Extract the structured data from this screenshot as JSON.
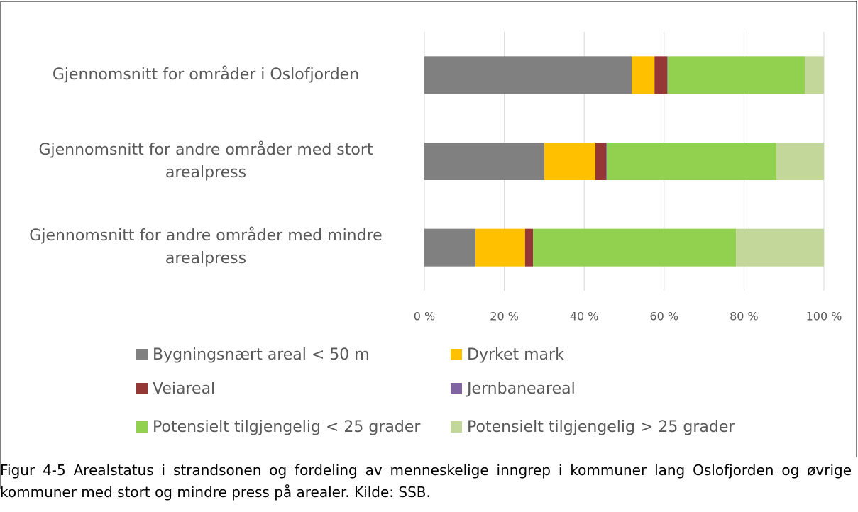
{
  "chart_data": {
    "type": "stacked-barh",
    "categories": [
      "Gjennomsnitt for områder i Oslofjorden",
      "Gjennomsnitt for andre områder med stort arealpress",
      "Gjennomsnitt for andre områder med mindre arealpress"
    ],
    "series": [
      {
        "name": "Bygningsnært areal < 50 m",
        "color": "#808080",
        "values": [
          51.9,
          30.0,
          12.8
        ]
      },
      {
        "name": "Dyrket mark",
        "color": "#ffc000",
        "values": [
          5.7,
          12.8,
          12.4
        ]
      },
      {
        "name": "Veiareal",
        "color": "#953735",
        "values": [
          3.2,
          2.7,
          2.0
        ]
      },
      {
        "name": "Jernbaneareal",
        "color": "#8064a2",
        "values": [
          0.1,
          0.2,
          0.0
        ]
      },
      {
        "name": "Potensielt tilgjengelig < 25 grader",
        "color": "#92d050",
        "values": [
          34.3,
          42.4,
          50.8
        ]
      },
      {
        "name": "Potensielt tilgjengelig > 25 grader",
        "color": "#c4d79b",
        "values": [
          4.8,
          11.9,
          22.0
        ]
      }
    ],
    "xlim": [
      0,
      100
    ],
    "xticks": [
      {
        "value": 0,
        "label": "0 %"
      },
      {
        "value": 20,
        "label": "20 %"
      },
      {
        "value": 40,
        "label": "40 %"
      },
      {
        "value": 60,
        "label": "60 %"
      },
      {
        "value": 80,
        "label": "80 %"
      },
      {
        "value": 100,
        "label": "100 %"
      }
    ],
    "grid": true,
    "legend": "bottom"
  },
  "caption": "Figur 4-5 Arealstatus i strandsonen og fordeling av menneskelige inngrep i kommuner lang Oslofjorden og øvrige kommuner med stort og mindre press på arealer. Kilde: SSB."
}
